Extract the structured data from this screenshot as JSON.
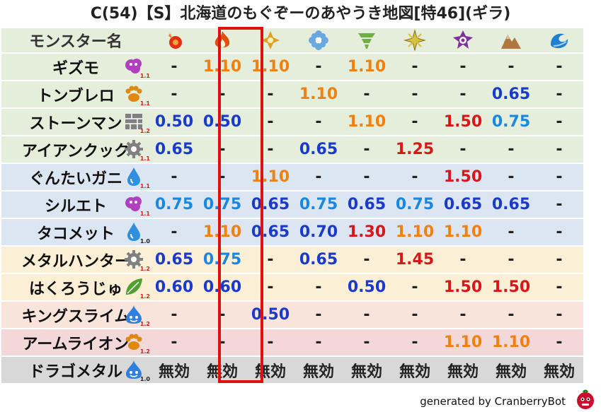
{
  "title": "C(54)【S】北海道のもぐぞーのあやうき地図[特46](ギラ)",
  "header_label": "モンスター名",
  "elements": [
    {
      "icon": "fire-small-icon",
      "color": "#e03010"
    },
    {
      "icon": "fire-big-icon",
      "color": "#e05010"
    },
    {
      "icon": "wind-cross-icon",
      "color": "#e0a020"
    },
    {
      "icon": "ice-flower-icon",
      "color": "#6aa8e0"
    },
    {
      "icon": "tornado-icon",
      "color": "#70b040"
    },
    {
      "icon": "light-star-icon",
      "color": "#d8c040"
    },
    {
      "icon": "dark-spiral-icon",
      "color": "#8030a0"
    },
    {
      "icon": "earth-mountain-icon",
      "color": "#b07840"
    },
    {
      "icon": "water-wave-icon",
      "color": "#2080d0"
    }
  ],
  "colors": {
    "low": "#1a3acc",
    "mid": "#1a88e0",
    "up": "#f08010",
    "high": "#d81818",
    "none": "#222222"
  },
  "rows": [
    {
      "name": "ギズモ",
      "bg": "#e4eedb",
      "race_icon": "gas-icon",
      "race_color": "#b040c0",
      "coef": "1.1",
      "coef_color": "#d02020",
      "vals": [
        "-",
        "1.10",
        "1.10",
        "-",
        "1.10",
        "-",
        "-",
        "-",
        "-"
      ],
      "cls": [
        "none",
        "up",
        "up",
        "none",
        "up",
        "none",
        "none",
        "none",
        "none"
      ]
    },
    {
      "name": "トンブレロ",
      "bg": "#e4eedb",
      "race_icon": "beast-paw-icon",
      "race_color": "#e08810",
      "coef": "1.1",
      "coef_color": "#d02020",
      "vals": [
        "-",
        "-",
        "-",
        "1.10",
        "-",
        "-",
        "-",
        "0.65",
        "-"
      ],
      "cls": [
        "none",
        "none",
        "none",
        "up",
        "none",
        "none",
        "none",
        "low",
        "none"
      ]
    },
    {
      "name": "ストーンマン",
      "bg": "#e4eedb",
      "race_icon": "material-brick-icon",
      "race_color": "#808080",
      "coef": "1.2",
      "coef_color": "#d02020",
      "vals": [
        "0.50",
        "0.50",
        "-",
        "-",
        "1.10",
        "-",
        "1.50",
        "0.75",
        "-"
      ],
      "cls": [
        "low",
        "low",
        "none",
        "none",
        "up",
        "none",
        "high",
        "mid",
        "none"
      ]
    },
    {
      "name": "アイアンクック",
      "bg": "#e4eedb",
      "race_icon": "machine-gear-icon",
      "race_color": "#808080",
      "coef": "1.1",
      "coef_color": "#d02020",
      "vals": [
        "0.65",
        "-",
        "-",
        "0.65",
        "-",
        "1.25",
        "-",
        "-",
        "-"
      ],
      "cls": [
        "low",
        "none",
        "none",
        "low",
        "none",
        "high",
        "none",
        "none",
        "none"
      ]
    },
    {
      "name": "ぐんたいガニ",
      "bg": "#dce6f2",
      "race_icon": "water-drop-icon",
      "race_color": "#3090e0",
      "coef": "1.1",
      "coef_color": "#d02020",
      "vals": [
        "-",
        "-",
        "1.10",
        "-",
        "-",
        "-",
        "1.50",
        "-",
        "-"
      ],
      "cls": [
        "none",
        "none",
        "up",
        "none",
        "none",
        "none",
        "high",
        "none",
        "none"
      ]
    },
    {
      "name": "シルエト",
      "bg": "#dce6f2",
      "race_icon": "gas-icon",
      "race_color": "#b040c0",
      "coef": "1.1",
      "coef_color": "#d02020",
      "vals": [
        "0.75",
        "0.75",
        "0.65",
        "0.75",
        "0.65",
        "0.75",
        "0.65",
        "0.65",
        "-"
      ],
      "cls": [
        "mid",
        "mid",
        "low",
        "mid",
        "low",
        "mid",
        "low",
        "low",
        "none"
      ]
    },
    {
      "name": "タコメット",
      "bg": "#dce6f2",
      "race_icon": "water-drop-icon",
      "race_color": "#3090e0",
      "coef": "1.0",
      "coef_color": "#222222",
      "vals": [
        "-",
        "1.10",
        "0.65",
        "0.70",
        "1.30",
        "1.10",
        "1.10",
        "-",
        "-"
      ],
      "cls": [
        "none",
        "up",
        "low",
        "low",
        "high",
        "up",
        "up",
        "none",
        "none"
      ]
    },
    {
      "name": "メタルハンター",
      "bg": "#fbefd6",
      "race_icon": "machine-gear-icon",
      "race_color": "#808080",
      "coef": "1.2",
      "coef_color": "#d02020",
      "vals": [
        "0.65",
        "0.75",
        "-",
        "0.65",
        "-",
        "1.45",
        "-",
        "-",
        "-"
      ],
      "cls": [
        "low",
        "mid",
        "none",
        "low",
        "none",
        "high",
        "none",
        "none",
        "none"
      ]
    },
    {
      "name": "はくろうじゅ",
      "bg": "#fbefd6",
      "race_icon": "plant-leaf-icon",
      "race_color": "#50a030",
      "coef": "1.2",
      "coef_color": "#d02020",
      "vals": [
        "0.60",
        "0.60",
        "-",
        "-",
        "0.50",
        "-",
        "1.50",
        "1.50",
        "-"
      ],
      "cls": [
        "low",
        "low",
        "none",
        "none",
        "low",
        "none",
        "high",
        "high",
        "none"
      ]
    },
    {
      "name": "キングスライム",
      "bg": "#f8e4da",
      "race_icon": "slime-icon",
      "race_color": "#3080e0",
      "coef": "1.2",
      "coef_color": "#d02020",
      "vals": [
        "-",
        "-",
        "0.50",
        "-",
        "-",
        "-",
        "-",
        "-",
        "-"
      ],
      "cls": [
        "none",
        "none",
        "low",
        "none",
        "none",
        "none",
        "none",
        "none",
        "none"
      ]
    },
    {
      "name": "アームライオン",
      "bg": "#f2d8d8",
      "race_icon": "beast-paw-icon",
      "race_color": "#e08810",
      "coef": "1.2",
      "coef_color": "#d02020",
      "vals": [
        "-",
        "-",
        "-",
        "-",
        "-",
        "-",
        "1.10",
        "1.10",
        "-"
      ],
      "cls": [
        "none",
        "none",
        "none",
        "none",
        "none",
        "none",
        "up",
        "up",
        "none"
      ]
    },
    {
      "name": "ドラゴメタル",
      "bg": "#d8d8d8",
      "race_icon": "slime-icon",
      "race_color": "#3080e0",
      "coef": "1.0",
      "coef_color": "#222222",
      "vals": [
        "無効",
        "無効",
        "無効",
        "無効",
        "無効",
        "無効",
        "無効",
        "無効",
        "無効"
      ],
      "cls": [
        "none",
        "none",
        "none",
        "none",
        "none",
        "none",
        "none",
        "none",
        "none"
      ]
    }
  ],
  "footer": "generated by CranberryBot",
  "bot_icon": "cranberry-bot-icon"
}
